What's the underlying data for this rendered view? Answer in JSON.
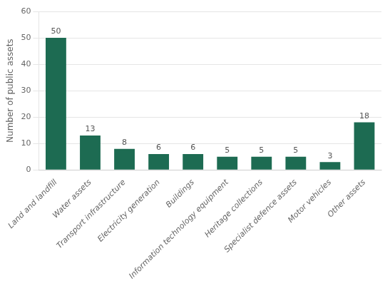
{
  "chart_data": {
    "type": "bar",
    "categories": [
      "Land and landfill",
      "Water assets",
      "Transport infrastructure",
      "Electricity generation",
      "Buildings",
      "Information technology equipment",
      "Heritage collections",
      "Specialist defence assets",
      "Motor vehicles",
      "Other assets"
    ],
    "values": [
      50,
      13,
      8,
      6,
      6,
      5,
      5,
      5,
      3,
      18
    ],
    "color": "#1d6b52",
    "ylabel": "Number of public assets",
    "ylim": [
      0,
      60
    ],
    "yticks": [
      0,
      10,
      20,
      30,
      40,
      50,
      60
    ],
    "grid": true,
    "data_labels": true
  }
}
